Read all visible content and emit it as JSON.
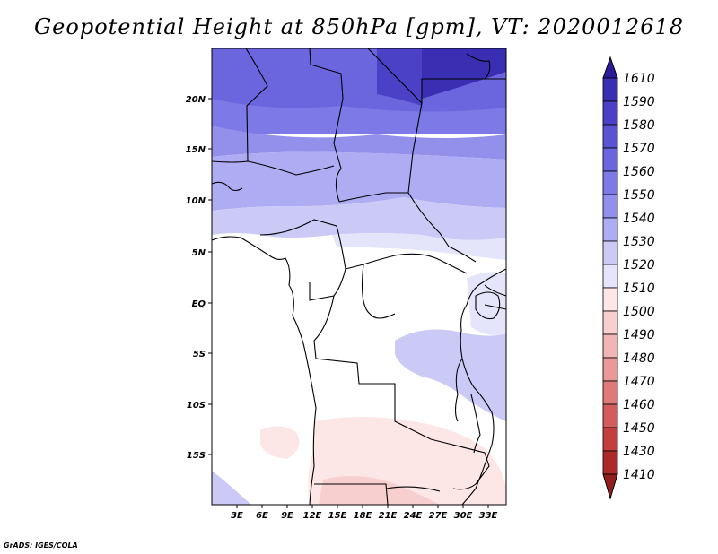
{
  "title": "Geopotential Height at 850hPa [gpm], VT: 2020012618",
  "credit": "GrADS: IGES/COLA",
  "map": {
    "region": "Central Africa",
    "variable": "Geopotential Height",
    "level": "850hPa",
    "units": "gpm",
    "valid_time": "2020012618",
    "lat_labels": [
      "20N",
      "15N",
      "10N",
      "5N",
      "EQ",
      "5S",
      "10S",
      "15S"
    ],
    "lon_labels": [
      "3E",
      "6E",
      "9E",
      "12E",
      "15E",
      "18E",
      "21E",
      "24E",
      "27E",
      "30E",
      "33E"
    ]
  },
  "colorbar": {
    "levels": [
      "1610",
      "1590",
      "1580",
      "1570",
      "1560",
      "1550",
      "1540",
      "1530",
      "1520",
      "1510",
      "1500",
      "1490",
      "1480",
      "1470",
      "1460",
      "1450",
      "1430",
      "1410"
    ],
    "colors": [
      "#2b1d99",
      "#3a2fb3",
      "#4a41c6",
      "#5a53d3",
      "#6b66de",
      "#7d79e6",
      "#9390ec",
      "#aeacf2",
      "#cbcaf7",
      "#e4e4fb",
      "#fde6e6",
      "#f8cfcf",
      "#f2b5b5",
      "#ea9898",
      "#e07a7a",
      "#d35c5c",
      "#c43e3e",
      "#ad2a2a",
      "#921f1f"
    ]
  }
}
